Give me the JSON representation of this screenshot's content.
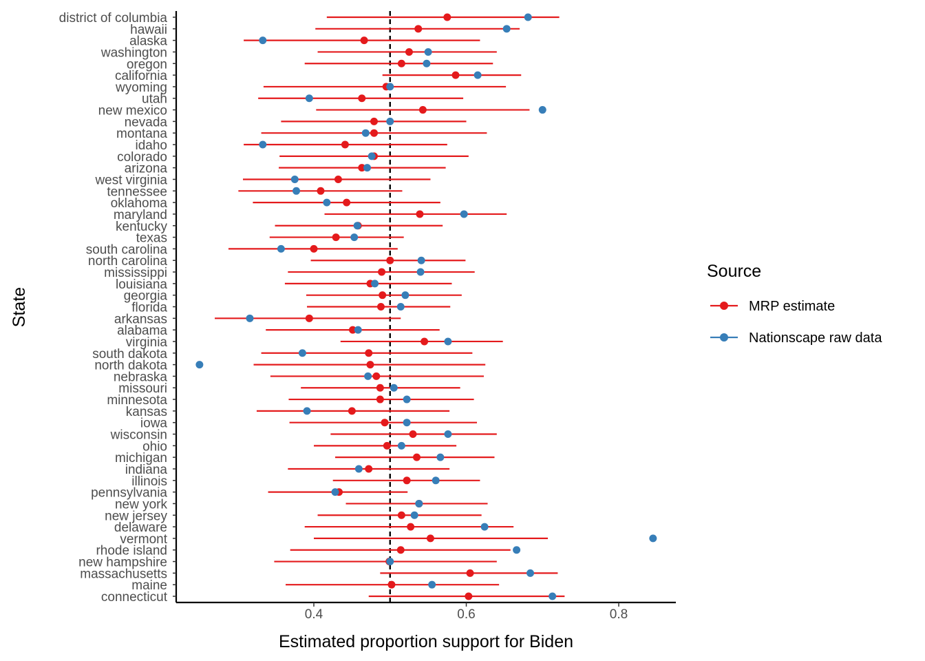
{
  "chart_data": {
    "type": "scatter",
    "xlabel": "Estimated proportion support for Biden",
    "ylabel": "State",
    "xlim": [
      0.22,
      0.875
    ],
    "x_ticks": [
      0.4,
      0.6,
      0.8
    ],
    "x_tick_labels": [
      "0.4",
      "0.6",
      "0.8"
    ],
    "reference_line": 0.5,
    "legend": {
      "title": "Source",
      "position": "right",
      "entries": [
        {
          "label": "MRP estimate",
          "color": "#e41a1c"
        },
        {
          "label": "Nationscape raw data",
          "color": "#377eb8"
        }
      ]
    },
    "grid": false,
    "rows": [
      {
        "state": "district of columbia",
        "mrp": 0.575,
        "lo": 0.417,
        "hi": 0.722,
        "raw": 0.681
      },
      {
        "state": "hawaii",
        "mrp": 0.537,
        "lo": 0.402,
        "hi": 0.67,
        "raw": 0.653
      },
      {
        "state": "alaska",
        "mrp": 0.466,
        "lo": 0.308,
        "hi": 0.618,
        "raw": 0.333
      },
      {
        "state": "washington",
        "mrp": 0.525,
        "lo": 0.405,
        "hi": 0.64,
        "raw": 0.55
      },
      {
        "state": "oregon",
        "mrp": 0.515,
        "lo": 0.388,
        "hi": 0.635,
        "raw": 0.548
      },
      {
        "state": "california",
        "mrp": 0.586,
        "lo": 0.49,
        "hi": 0.672,
        "raw": 0.615
      },
      {
        "state": "wyoming",
        "mrp": 0.495,
        "lo": 0.334,
        "hi": 0.652,
        "raw": 0.5
      },
      {
        "state": "utah",
        "mrp": 0.463,
        "lo": 0.327,
        "hi": 0.596,
        "raw": 0.394
      },
      {
        "state": "new mexico",
        "mrp": 0.543,
        "lo": 0.403,
        "hi": 0.683,
        "raw": 0.7
      },
      {
        "state": "nevada",
        "mrp": 0.479,
        "lo": 0.357,
        "hi": 0.6,
        "raw": 0.5
      },
      {
        "state": "montana",
        "mrp": 0.479,
        "lo": 0.331,
        "hi": 0.627,
        "raw": 0.468
      },
      {
        "state": "idaho",
        "mrp": 0.441,
        "lo": 0.308,
        "hi": 0.575,
        "raw": 0.333
      },
      {
        "state": "colorado",
        "mrp": 0.479,
        "lo": 0.355,
        "hi": 0.603,
        "raw": 0.476
      },
      {
        "state": "arizona",
        "mrp": 0.463,
        "lo": 0.354,
        "hi": 0.573,
        "raw": 0.47
      },
      {
        "state": "west virginia",
        "mrp": 0.432,
        "lo": 0.307,
        "hi": 0.553,
        "raw": 0.375
      },
      {
        "state": "tennessee",
        "mrp": 0.409,
        "lo": 0.301,
        "hi": 0.516,
        "raw": 0.377
      },
      {
        "state": "oklahoma",
        "mrp": 0.443,
        "lo": 0.32,
        "hi": 0.566,
        "raw": 0.417
      },
      {
        "state": "maryland",
        "mrp": 0.539,
        "lo": 0.414,
        "hi": 0.653,
        "raw": 0.597
      },
      {
        "state": "kentucky",
        "mrp": 0.458,
        "lo": 0.349,
        "hi": 0.569,
        "raw": 0.457
      },
      {
        "state": "texas",
        "mrp": 0.429,
        "lo": 0.342,
        "hi": 0.518,
        "raw": 0.453
      },
      {
        "state": "south carolina",
        "mrp": 0.4,
        "lo": 0.288,
        "hi": 0.51,
        "raw": 0.357
      },
      {
        "state": "north carolina",
        "mrp": 0.5,
        "lo": 0.396,
        "hi": 0.599,
        "raw": 0.541
      },
      {
        "state": "mississippi",
        "mrp": 0.489,
        "lo": 0.366,
        "hi": 0.611,
        "raw": 0.54
      },
      {
        "state": "louisiana",
        "mrp": 0.474,
        "lo": 0.362,
        "hi": 0.581,
        "raw": 0.48
      },
      {
        "state": "georgia",
        "mrp": 0.49,
        "lo": 0.39,
        "hi": 0.594,
        "raw": 0.52
      },
      {
        "state": "florida",
        "mrp": 0.488,
        "lo": 0.391,
        "hi": 0.579,
        "raw": 0.514
      },
      {
        "state": "arkansas",
        "mrp": 0.394,
        "lo": 0.27,
        "hi": 0.514,
        "raw": 0.316
      },
      {
        "state": "alabama",
        "mrp": 0.451,
        "lo": 0.337,
        "hi": 0.565,
        "raw": 0.458
      },
      {
        "state": "virginia",
        "mrp": 0.545,
        "lo": 0.435,
        "hi": 0.648,
        "raw": 0.576
      },
      {
        "state": "south dakota",
        "mrp": 0.472,
        "lo": 0.331,
        "hi": 0.608,
        "raw": 0.385
      },
      {
        "state": "north dakota",
        "mrp": 0.474,
        "lo": 0.321,
        "hi": 0.625,
        "raw": 0.25
      },
      {
        "state": "nebraska",
        "mrp": 0.482,
        "lo": 0.343,
        "hi": 0.623,
        "raw": 0.471
      },
      {
        "state": "missouri",
        "mrp": 0.487,
        "lo": 0.383,
        "hi": 0.592,
        "raw": 0.505
      },
      {
        "state": "minnesota",
        "mrp": 0.487,
        "lo": 0.367,
        "hi": 0.61,
        "raw": 0.522
      },
      {
        "state": "kansas",
        "mrp": 0.45,
        "lo": 0.325,
        "hi": 0.578,
        "raw": 0.391
      },
      {
        "state": "iowa",
        "mrp": 0.493,
        "lo": 0.368,
        "hi": 0.614,
        "raw": 0.522
      },
      {
        "state": "wisconsin",
        "mrp": 0.53,
        "lo": 0.422,
        "hi": 0.64,
        "raw": 0.576
      },
      {
        "state": "ohio",
        "mrp": 0.496,
        "lo": 0.4,
        "hi": 0.587,
        "raw": 0.515
      },
      {
        "state": "michigan",
        "mrp": 0.535,
        "lo": 0.428,
        "hi": 0.637,
        "raw": 0.566
      },
      {
        "state": "indiana",
        "mrp": 0.472,
        "lo": 0.366,
        "hi": 0.578,
        "raw": 0.459
      },
      {
        "state": "illinois",
        "mrp": 0.522,
        "lo": 0.425,
        "hi": 0.618,
        "raw": 0.56
      },
      {
        "state": "pennsylvania",
        "mrp": 0.433,
        "lo": 0.34,
        "hi": 0.523,
        "raw": 0.428
      },
      {
        "state": "new york",
        "mrp": 0.538,
        "lo": 0.442,
        "hi": 0.628,
        "raw": 0.538
      },
      {
        "state": "new jersey",
        "mrp": 0.515,
        "lo": 0.405,
        "hi": 0.62,
        "raw": 0.532
      },
      {
        "state": "delaware",
        "mrp": 0.527,
        "lo": 0.388,
        "hi": 0.662,
        "raw": 0.624
      },
      {
        "state": "vermont",
        "mrp": 0.553,
        "lo": 0.4,
        "hi": 0.707,
        "raw": 0.845
      },
      {
        "state": "rhode island",
        "mrp": 0.514,
        "lo": 0.369,
        "hi": 0.658,
        "raw": 0.666
      },
      {
        "state": "new hampshire",
        "mrp": 0.499,
        "lo": 0.348,
        "hi": 0.64,
        "raw": 0.5
      },
      {
        "state": "massachusetts",
        "mrp": 0.605,
        "lo": 0.487,
        "hi": 0.72,
        "raw": 0.684
      },
      {
        "state": "maine",
        "mrp": 0.502,
        "lo": 0.363,
        "hi": 0.643,
        "raw": 0.555
      },
      {
        "state": "connecticut",
        "mrp": 0.603,
        "lo": 0.472,
        "hi": 0.729,
        "raw": 0.713
      }
    ]
  }
}
